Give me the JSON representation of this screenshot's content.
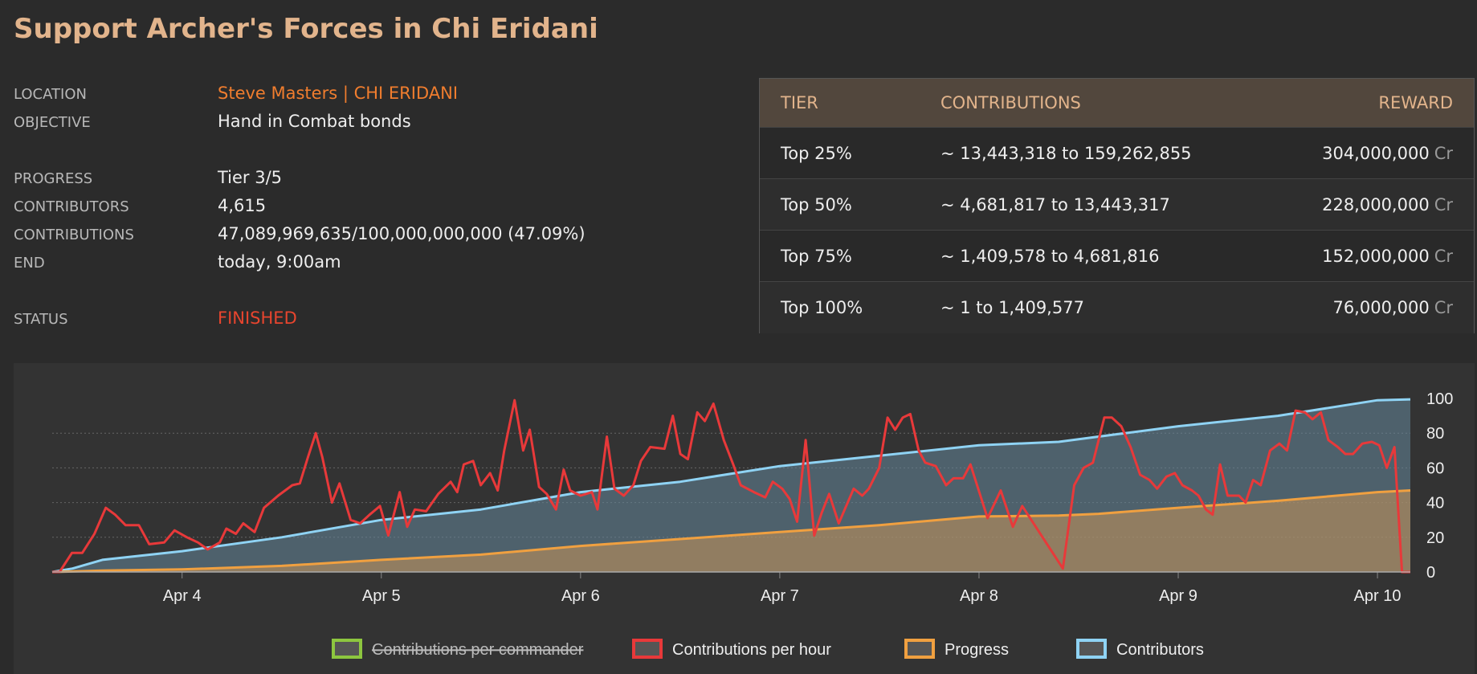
{
  "header": {
    "title": "Support Archer's Forces in Chi Eridani"
  },
  "info": [
    {
      "label": "LOCATION",
      "value": "Steve Masters | CHI ERIDANI"
    },
    {
      "label": "OBJECTIVE",
      "value": "Hand in Combat bonds"
    },
    {
      "label": "PROGRESS",
      "value": "Tier 3/5"
    },
    {
      "label": "CONTRIBUTORS",
      "value": "4,615"
    },
    {
      "label": "CONTRIBUTIONS",
      "value": "47,089,969,635/100,000,000,000 (47.09%)"
    },
    {
      "label": "END",
      "value": "today, 9:00am"
    },
    {
      "label": "STATUS",
      "value": "FINISHED"
    }
  ],
  "table": {
    "header": [
      "TIER",
      "CONTRIBUTIONS",
      "REWARD"
    ],
    "rows": [
      [
        "Top 25%",
        "~ 13,443,318 to 159,262,855",
        "304,000,000",
        "Cr"
      ],
      [
        "Top 50%",
        "~ 4,681,817 to 13,443,317",
        "228,000,000",
        "Cr"
      ],
      [
        "Top 75%",
        "~ 1,409,578 to 4,681,816",
        "152,000,000",
        "Cr"
      ],
      [
        "Top 100%",
        "~ 1 to 1,409,577",
        "76,000,000",
        "Cr"
      ]
    ]
  },
  "chart_data": {
    "type": "line",
    "grid": true,
    "xlim": [
      3.348,
      10.165
    ],
    "xticks": [
      {
        "value": 4,
        "label": "Apr 4"
      },
      {
        "value": 5,
        "label": "Apr 5"
      },
      {
        "value": 6,
        "label": "Apr 6"
      },
      {
        "value": 7,
        "label": "Apr 7"
      },
      {
        "value": 8,
        "label": "Apr 8"
      },
      {
        "value": 9,
        "label": "Apr 9"
      },
      {
        "value": 10,
        "label": "Apr 10"
      }
    ],
    "ylim": [
      0,
      100
    ],
    "yticks": [
      0,
      20,
      40,
      60,
      80,
      100
    ],
    "series": [
      {
        "name": "Contributions per commander",
        "color": "#8dc63f",
        "hidden": true
      },
      {
        "name": "Contributions per hour",
        "color": "#e8393a",
        "x": [
          3.348,
          3.385,
          3.447,
          3.499,
          3.56,
          3.617,
          3.664,
          3.716,
          3.783,
          3.835,
          3.91,
          3.962,
          4.024,
          4.08,
          4.128,
          4.189,
          4.222,
          4.27,
          4.307,
          4.364,
          4.411,
          4.482,
          4.553,
          4.591,
          4.634,
          4.671,
          4.704,
          4.752,
          4.79,
          4.846,
          4.894,
          4.941,
          4.993,
          5.035,
          5.092,
          5.13,
          5.168,
          5.225,
          5.286,
          5.348,
          5.381,
          5.414,
          5.461,
          5.499,
          5.546,
          5.584,
          5.617,
          5.669,
          5.712,
          5.745,
          5.792,
          5.83,
          5.877,
          5.915,
          5.948,
          6.0,
          6.057,
          6.085,
          6.132,
          6.17,
          6.217,
          6.265,
          6.303,
          6.35,
          6.421,
          6.463,
          6.501,
          6.539,
          6.586,
          6.624,
          6.667,
          6.719,
          6.766,
          6.804,
          6.87,
          6.927,
          6.965,
          7.012,
          7.05,
          7.087,
          7.13,
          7.173,
          7.21,
          7.248,
          7.296,
          7.371,
          7.414,
          7.447,
          7.499,
          7.541,
          7.579,
          7.617,
          7.655,
          7.697,
          7.73,
          7.783,
          7.835,
          7.872,
          7.92,
          7.957,
          8.043,
          8.109,
          8.17,
          8.217,
          8.421,
          8.478,
          8.525,
          8.572,
          8.629,
          8.667,
          8.714,
          8.761,
          8.809,
          8.856,
          8.894,
          8.941,
          8.983,
          9.021,
          9.069,
          9.102,
          9.139,
          9.173,
          9.21,
          9.248,
          9.305,
          9.338,
          9.376,
          9.414,
          9.461,
          9.508,
          9.546,
          9.589,
          9.636,
          9.674,
          9.716,
          9.754,
          9.801,
          9.839,
          9.877,
          9.924,
          9.972,
          10.009,
          10.047,
          10.085,
          10.123,
          10.165
        ],
        "values": [
          0,
          0,
          11,
          11,
          22,
          37,
          33,
          27,
          27,
          16,
          17,
          24,
          20,
          17,
          13,
          17,
          25,
          22,
          28,
          23,
          37,
          44,
          50,
          51,
          67,
          80,
          66,
          40,
          51,
          30,
          28,
          33,
          38,
          21,
          46,
          26,
          36,
          35,
          45,
          52,
          46,
          62,
          64,
          50,
          57,
          47,
          70,
          99,
          70,
          82,
          49,
          45,
          36,
          59,
          47,
          44,
          46,
          36,
          78,
          48,
          44,
          50,
          64,
          72,
          71,
          90,
          68,
          65,
          92,
          87,
          97,
          76,
          62,
          50,
          46,
          43,
          52,
          48,
          42,
          29,
          76,
          21,
          34,
          45,
          28,
          48,
          44,
          48,
          60,
          89,
          82,
          89,
          91,
          70,
          63,
          61,
          50,
          54,
          54,
          62,
          31,
          47,
          26,
          38,
          2,
          50,
          60,
          63,
          89,
          89,
          84,
          72,
          56,
          53,
          48,
          55,
          57,
          50,
          47,
          44,
          36,
          33,
          62,
          44,
          44,
          40,
          53,
          50,
          70,
          74,
          70,
          93,
          92,
          88,
          92,
          76,
          72,
          68,
          68,
          74,
          75,
          73,
          60,
          72,
          0,
          0
        ]
      },
      {
        "name": "Progress",
        "color": "#f0a040",
        "fill": "rgba(200,150,90,0.55)",
        "x": [
          3.348,
          3.45,
          3.6,
          4,
          4.5,
          5,
          5.5,
          6,
          6.5,
          7,
          7.5,
          8,
          8.4,
          8.6,
          9,
          9.5,
          10,
          10.165
        ],
        "values": [
          0,
          0.3,
          0.8,
          1.5,
          3.5,
          7,
          10,
          15,
          19,
          23,
          27,
          32,
          32.5,
          33.5,
          37,
          41,
          46,
          47
        ]
      },
      {
        "name": "Contributors",
        "color": "#8fd3f4",
        "fill": "rgba(100,135,155,0.55)",
        "x": [
          3.348,
          3.45,
          3.6,
          4,
          4.5,
          5,
          5.5,
          6,
          6.5,
          7,
          7.5,
          8,
          8.4,
          8.6,
          9,
          9.5,
          10,
          10.165
        ],
        "values": [
          0,
          2,
          7,
          12,
          20,
          30,
          36,
          46,
          52,
          61,
          67,
          73,
          75,
          78,
          84,
          90,
          99,
          99.5
        ]
      }
    ]
  }
}
